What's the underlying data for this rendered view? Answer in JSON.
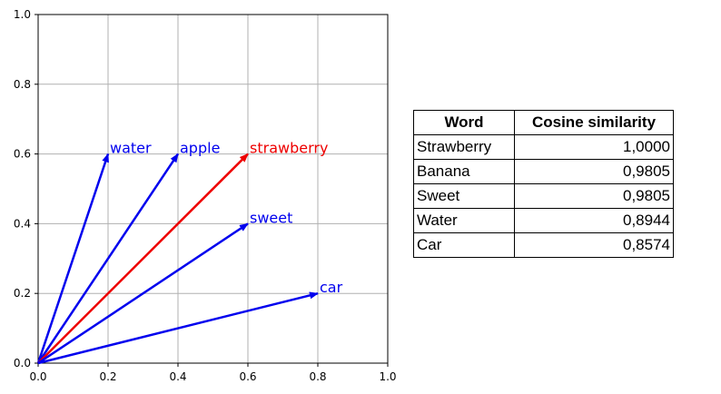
{
  "chart_data": [
    {
      "type": "vector",
      "xlim": [
        0.0,
        1.0
      ],
      "ylim": [
        0.0,
        1.0
      ],
      "grid": true,
      "xticks": [
        "0.0",
        "0.2",
        "0.4",
        "0.6",
        "0.8",
        "1.0"
      ],
      "yticks": [
        "0.0",
        "0.2",
        "0.4",
        "0.6",
        "0.8",
        "1.0"
      ],
      "vectors": [
        {
          "label": "water",
          "x": 0.2,
          "y": 0.6,
          "color": "#0000ee"
        },
        {
          "label": "apple",
          "x": 0.4,
          "y": 0.6,
          "color": "#0000ee"
        },
        {
          "label": "strawberry",
          "x": 0.6,
          "y": 0.6,
          "color": "#ee0000"
        },
        {
          "label": "sweet",
          "x": 0.6,
          "y": 0.4,
          "color": "#0000ee"
        },
        {
          "label": "car",
          "x": 0.8,
          "y": 0.2,
          "color": "#0000ee"
        }
      ]
    },
    {
      "type": "table",
      "columns": [
        "Word",
        "Cosine similarity"
      ],
      "rows": [
        [
          "Strawberry",
          "1,0000"
        ],
        [
          "Banana",
          "0,9805"
        ],
        [
          "Sweet",
          "0,9805"
        ],
        [
          "Water",
          "0,8944"
        ],
        [
          "Car",
          "0,8574"
        ]
      ]
    }
  ]
}
